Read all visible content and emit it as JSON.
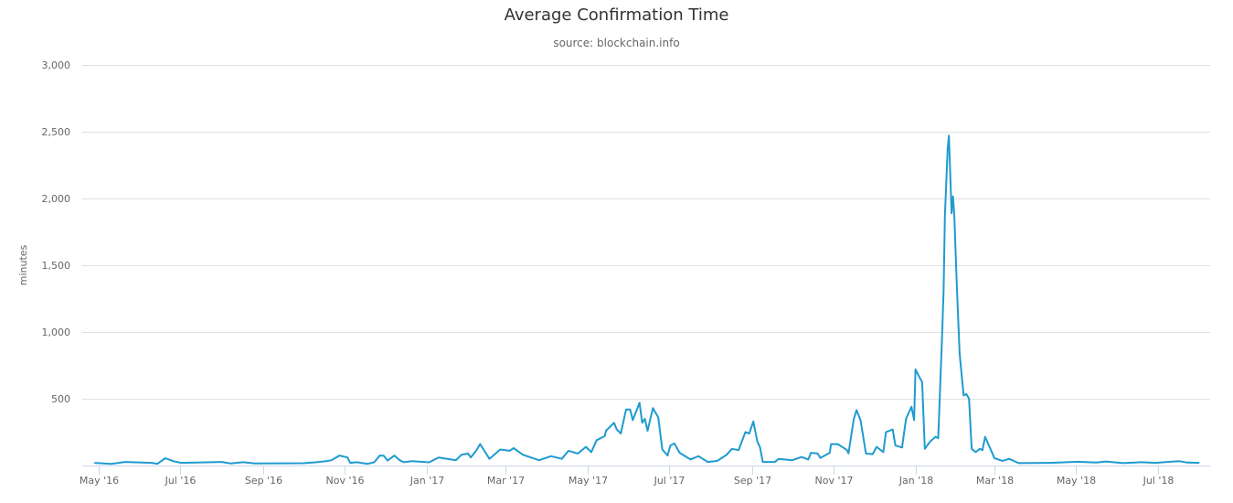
{
  "chart_data": {
    "type": "line",
    "title": "Average Confirmation Time",
    "subtitle": "source: blockchain.info",
    "xlabel": "",
    "ylabel": "minutes",
    "ylim": [
      0,
      3000
    ],
    "xlim": [
      "2016-04-19",
      "2018-08-09"
    ],
    "yticks": [
      0,
      500,
      1000,
      1500,
      2000,
      2500,
      3000
    ],
    "ytick_labels": [
      "",
      "500",
      "1,000",
      "1,500",
      "2,000",
      "2,500",
      "3,000"
    ],
    "xticks": [
      "2016-05-01",
      "2016-07-01",
      "2016-09-01",
      "2016-11-01",
      "2017-01-01",
      "2017-03-01",
      "2017-05-01",
      "2017-07-01",
      "2017-09-01",
      "2017-11-01",
      "2018-01-01",
      "2018-03-01",
      "2018-05-01",
      "2018-07-01"
    ],
    "xtick_labels": [
      "May '16",
      "Jul '16",
      "Sep '16",
      "Nov '16",
      "Jan '17",
      "Mar '17",
      "May '17",
      "Jul '17",
      "Sep '17",
      "Nov '17",
      "Jan '18",
      "Mar '18",
      "May '18",
      "Jul '18"
    ],
    "grid": true,
    "legend": "none",
    "line_color": "#1f9bcf",
    "series": [
      {
        "x": [
          "2016-04-28",
          "2016-05-11",
          "2016-05-21",
          "2016-06-10",
          "2016-06-14",
          "2016-06-20",
          "2016-06-26",
          "2016-07-02",
          "2016-08-01",
          "2016-08-08",
          "2016-08-17",
          "2016-08-26",
          "2016-10-01",
          "2016-10-11",
          "2016-10-18",
          "2016-10-22",
          "2016-10-28",
          "2016-11-03",
          "2016-11-05",
          "2016-11-10",
          "2016-11-18",
          "2016-11-23",
          "2016-11-27",
          "2016-11-30",
          "2016-12-03",
          "2016-12-08",
          "2016-12-12",
          "2016-12-15",
          "2016-12-21",
          "2017-01-03",
          "2017-01-10",
          "2017-01-23",
          "2017-01-27",
          "2017-02-01",
          "2017-02-03",
          "2017-02-07",
          "2017-02-10",
          "2017-02-17",
          "2017-02-25",
          "2017-03-04",
          "2017-03-07",
          "2017-03-14",
          "2017-03-26",
          "2017-04-04",
          "2017-04-12",
          "2017-04-17",
          "2017-04-24",
          "2017-04-30",
          "2017-05-04",
          "2017-05-08",
          "2017-05-14",
          "2017-05-15",
          "2017-05-21",
          "2017-05-23",
          "2017-05-26",
          "2017-05-30",
          "2017-06-02",
          "2017-06-04",
          "2017-06-09",
          "2017-06-11",
          "2017-06-13",
          "2017-06-15",
          "2017-06-19",
          "2017-06-23",
          "2017-06-26",
          "2017-06-30",
          "2017-07-02",
          "2017-07-05",
          "2017-07-09",
          "2017-07-17",
          "2017-07-23",
          "2017-07-30",
          "2017-08-06",
          "2017-08-13",
          "2017-08-17",
          "2017-08-22",
          "2017-08-27",
          "2017-08-30",
          "2017-09-02",
          "2017-09-05",
          "2017-09-07",
          "2017-09-09",
          "2017-09-18",
          "2017-09-21",
          "2017-10-01",
          "2017-10-08",
          "2017-10-13",
          "2017-10-15",
          "2017-10-20",
          "2017-10-22",
          "2017-10-29",
          "2017-10-30",
          "2017-11-04",
          "2017-11-11",
          "2017-11-12",
          "2017-11-16",
          "2017-11-18",
          "2017-11-21",
          "2017-11-25",
          "2017-11-30",
          "2017-12-03",
          "2017-12-08",
          "2017-12-10",
          "2017-12-15",
          "2017-12-17",
          "2017-12-22",
          "2017-12-25",
          "2017-12-29",
          "2017-12-31",
          "2018-01-01",
          "2018-01-04",
          "2018-01-06",
          "2018-01-08",
          "2018-01-12",
          "2018-01-16",
          "2018-01-18",
          "2018-01-21",
          "2018-01-22",
          "2018-01-23",
          "2018-01-25",
          "2018-01-26",
          "2018-01-28",
          "2018-01-29",
          "2018-01-30",
          "2018-02-01",
          "2018-02-03",
          "2018-02-04",
          "2018-02-06",
          "2018-02-08",
          "2018-02-10",
          "2018-02-12",
          "2018-02-15",
          "2018-02-18",
          "2018-02-20",
          "2018-02-22",
          "2018-02-26",
          "2018-03-01",
          "2018-03-07",
          "2018-03-12",
          "2018-03-19",
          "2018-04-12",
          "2018-05-02",
          "2018-05-16",
          "2018-05-23",
          "2018-06-05",
          "2018-06-19",
          "2018-06-29",
          "2018-07-17",
          "2018-07-23",
          "2018-08-01"
        ],
        "values": [
          20,
          12,
          27,
          20,
          12,
          55,
          32,
          20,
          27,
          15,
          25,
          15,
          17,
          25,
          32,
          40,
          75,
          60,
          20,
          25,
          12,
          25,
          75,
          73,
          37,
          75,
          40,
          25,
          32,
          24,
          60,
          40,
          80,
          90,
          60,
          110,
          160,
          50,
          120,
          110,
          130,
          80,
          40,
          70,
          50,
          110,
          90,
          140,
          100,
          190,
          220,
          260,
          320,
          270,
          240,
          420,
          420,
          340,
          470,
          320,
          350,
          260,
          430,
          360,
          120,
          75,
          150,
          165,
          95,
          45,
          70,
          27,
          34,
          80,
          125,
          115,
          250,
          240,
          330,
          180,
          135,
          27,
          27,
          50,
          40,
          64,
          45,
          95,
          90,
          57,
          95,
          160,
          160,
          115,
          90,
          350,
          415,
          340,
          90,
          85,
          140,
          100,
          250,
          270,
          150,
          135,
          350,
          440,
          340,
          720,
          660,
          625,
          125,
          180,
          215,
          205,
          1005,
          1320,
          1870,
          2370,
          2470,
          1890,
          2015,
          1870,
          1320,
          840,
          730,
          525,
          535,
          500,
          125,
          100,
          125,
          115,
          215,
          125,
          55,
          35,
          50,
          18,
          20,
          28,
          22,
          30,
          18,
          25,
          20,
          32,
          22,
          20
        ]
      }
    ]
  }
}
